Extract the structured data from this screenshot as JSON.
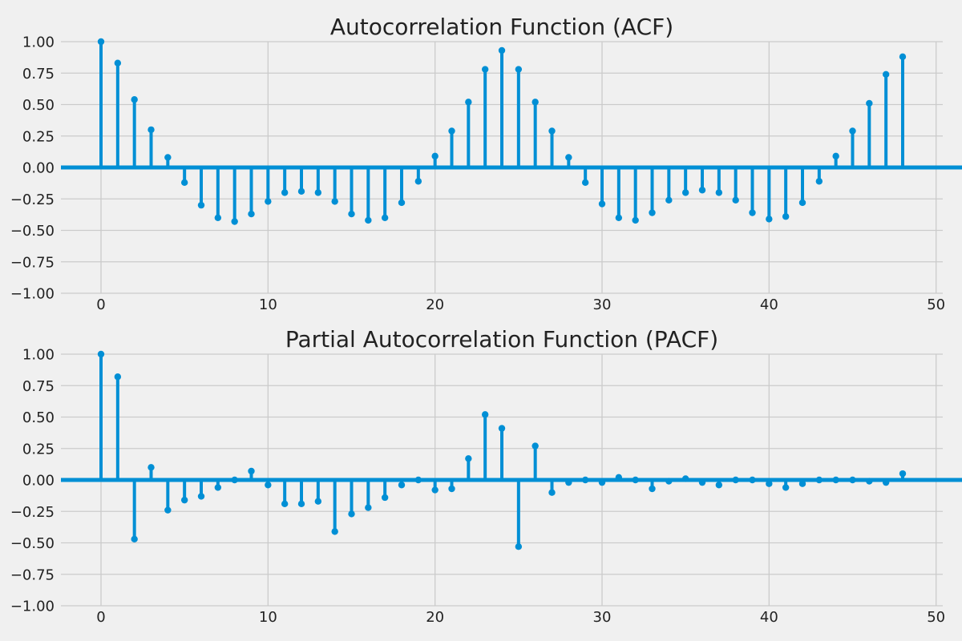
{
  "colors": {
    "background": "#f0f0f0",
    "series": "#008fd5",
    "grid": "#cbcbcb",
    "text": "#222222"
  },
  "chart_data": [
    {
      "type": "stem",
      "title": "Autocorrelation Function (ACF)",
      "xlabel": "",
      "ylabel": "",
      "xlim": [
        -2.4,
        50.4
      ],
      "ylim": [
        -1.0,
        1.0
      ],
      "xticks": [
        0,
        10,
        20,
        30,
        40,
        50
      ],
      "xtick_labels": [
        "0",
        "10",
        "20",
        "30",
        "40",
        "50"
      ],
      "yticks": [
        -1.0,
        -0.75,
        -0.5,
        -0.25,
        0.0,
        0.25,
        0.5,
        0.75,
        1.0
      ],
      "ytick_labels": [
        "−1.00",
        "−0.75",
        "−0.50",
        "−0.25",
        "0.00",
        "0.25",
        "0.50",
        "0.75",
        "1.00"
      ],
      "grid": true,
      "x": [
        0,
        1,
        2,
        3,
        4,
        5,
        6,
        7,
        8,
        9,
        10,
        11,
        12,
        13,
        14,
        15,
        16,
        17,
        18,
        19,
        20,
        21,
        22,
        23,
        24,
        25,
        26,
        27,
        28,
        29,
        30,
        31,
        32,
        33,
        34,
        35,
        36,
        37,
        38,
        39,
        40,
        41,
        42,
        43,
        44,
        45,
        46,
        47,
        48
      ],
      "values": [
        1.0,
        0.83,
        0.54,
        0.3,
        0.08,
        -0.12,
        -0.3,
        -0.4,
        -0.43,
        -0.37,
        -0.27,
        -0.2,
        -0.19,
        -0.2,
        -0.27,
        -0.37,
        -0.42,
        -0.4,
        -0.28,
        -0.11,
        0.09,
        0.29,
        0.52,
        0.78,
        0.93,
        0.78,
        0.52,
        0.29,
        0.08,
        -0.12,
        -0.29,
        -0.4,
        -0.42,
        -0.36,
        -0.26,
        -0.2,
        -0.18,
        -0.2,
        -0.26,
        -0.36,
        -0.41,
        -0.39,
        -0.28,
        -0.11,
        0.09,
        0.29,
        0.51,
        0.74,
        0.88
      ]
    },
    {
      "type": "stem",
      "title": "Partial Autocorrelation Function (PACF)",
      "xlabel": "",
      "ylabel": "",
      "xlim": [
        -2.4,
        50.4
      ],
      "ylim": [
        -1.0,
        1.0
      ],
      "xticks": [
        0,
        10,
        20,
        30,
        40,
        50
      ],
      "xtick_labels": [
        "0",
        "10",
        "20",
        "30",
        "40",
        "50"
      ],
      "yticks": [
        -1.0,
        -0.75,
        -0.5,
        -0.25,
        0.0,
        0.25,
        0.5,
        0.75,
        1.0
      ],
      "ytick_labels": [
        "−1.00",
        "−0.75",
        "−0.50",
        "−0.25",
        "0.00",
        "0.25",
        "0.50",
        "0.75",
        "1.00"
      ],
      "grid": true,
      "x": [
        0,
        1,
        2,
        3,
        4,
        5,
        6,
        7,
        8,
        9,
        10,
        11,
        12,
        13,
        14,
        15,
        16,
        17,
        18,
        19,
        20,
        21,
        22,
        23,
        24,
        25,
        26,
        27,
        28,
        29,
        30,
        31,
        32,
        33,
        34,
        35,
        36,
        37,
        38,
        39,
        40,
        41,
        42,
        43,
        44,
        45,
        46,
        47,
        48
      ],
      "values": [
        1.0,
        0.82,
        -0.47,
        0.1,
        -0.24,
        -0.16,
        -0.13,
        -0.06,
        0.0,
        0.07,
        -0.04,
        -0.19,
        -0.19,
        -0.17,
        -0.41,
        -0.27,
        -0.22,
        -0.14,
        -0.04,
        0.0,
        -0.08,
        -0.07,
        0.17,
        0.52,
        0.41,
        -0.53,
        0.27,
        -0.1,
        -0.02,
        0.0,
        -0.02,
        0.02,
        0.0,
        -0.07,
        -0.01,
        0.01,
        -0.02,
        -0.04,
        0.0,
        0.0,
        -0.03,
        -0.06,
        -0.03,
        0.0,
        0.0,
        0.0,
        -0.01,
        -0.02,
        0.05
      ]
    }
  ]
}
